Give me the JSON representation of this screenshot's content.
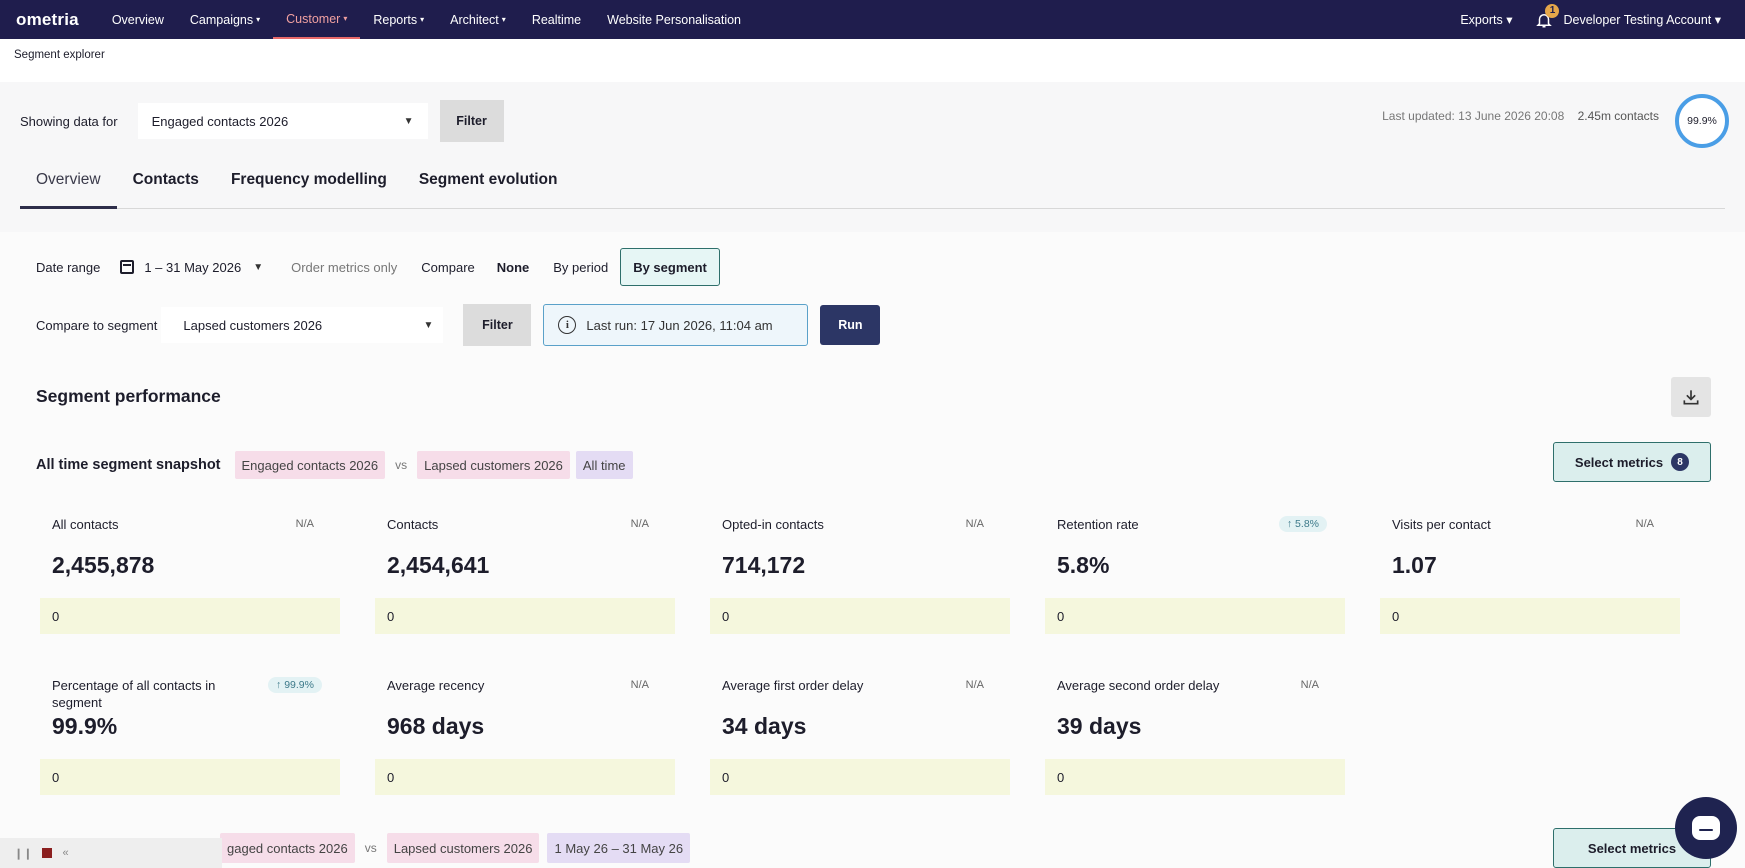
{
  "nav": {
    "logo": "ometria",
    "items": [
      {
        "label": "Overview",
        "caret": ""
      },
      {
        "label": "Campaigns",
        "caret": "▾"
      },
      {
        "label": "Customer",
        "caret": "▾"
      },
      {
        "label": "Reports",
        "caret": "▾"
      },
      {
        "label": "Architect",
        "caret": "▾"
      },
      {
        "label": "Realtime",
        "caret": ""
      },
      {
        "label": "Website Personalisation",
        "caret": ""
      }
    ],
    "exports": "Exports ▾",
    "notification_count": "1",
    "account": "Developer Testing Account ▾"
  },
  "breadcrumb": "Segment explorer",
  "showing": {
    "label": "Showing data for",
    "segment": "Engaged contacts 2026",
    "filter": "Filter",
    "last_updated": "Last updated: 13 June 2026 20:08",
    "contacts": "2.45m contacts",
    "coverage": "99.9%"
  },
  "tabs": [
    "Overview",
    "Contacts",
    "Frequency modelling",
    "Segment evolution"
  ],
  "controls": {
    "date_range_label": "Date range",
    "date_range_value": "1 – 31 May 2026",
    "order_metrics": "Order metrics only",
    "compare_label": "Compare",
    "compare_options": [
      "None",
      "By period",
      "By segment"
    ],
    "compare_to_label": "Compare to segment",
    "compare_to_value": "Lapsed customers 2026",
    "filter": "Filter",
    "last_run": "Last run: 17 Jun 2026, 11:04 am",
    "run": "Run"
  },
  "section_title": "Segment performance",
  "snapshot": {
    "title": "All time segment snapshot",
    "segment_a": "Engaged contacts 2026",
    "vs": "vs",
    "segment_b": "Lapsed customers 2026",
    "period": "All time",
    "select_metrics": "Select metrics",
    "metrics_count": "8"
  },
  "metrics": [
    {
      "name": "All contacts",
      "badge": "N/A",
      "value": "2,455,878",
      "compare": "0"
    },
    {
      "name": "Contacts",
      "badge": "N/A",
      "value": "2,454,641",
      "compare": "0"
    },
    {
      "name": "Opted-in contacts",
      "badge": "N/A",
      "value": "714,172",
      "compare": "0"
    },
    {
      "name": "Retention rate",
      "badge": "↑ 5.8%",
      "value": "5.8%",
      "compare": "0"
    },
    {
      "name": "Visits per contact",
      "badge": "N/A",
      "value": "1.07",
      "compare": "0"
    },
    {
      "name": "Percentage of all contacts in segment",
      "badge": "↑ 99.9%",
      "value": "99.9%",
      "compare": "0"
    },
    {
      "name": "Average recency",
      "badge": "N/A",
      "value": "968 days",
      "compare": "0"
    },
    {
      "name": "Average first order delay",
      "badge": "N/A",
      "value": "34 days",
      "compare": "0"
    },
    {
      "name": "Average second order delay",
      "badge": "N/A",
      "value": "39 days",
      "compare": "0"
    }
  ],
  "period_row": {
    "segment_a": "gaged contacts 2026",
    "vs": "vs",
    "segment_b": "Lapsed customers 2026",
    "period": "1 May 26 – 31 May 26",
    "select_metrics": "Select metrics"
  }
}
